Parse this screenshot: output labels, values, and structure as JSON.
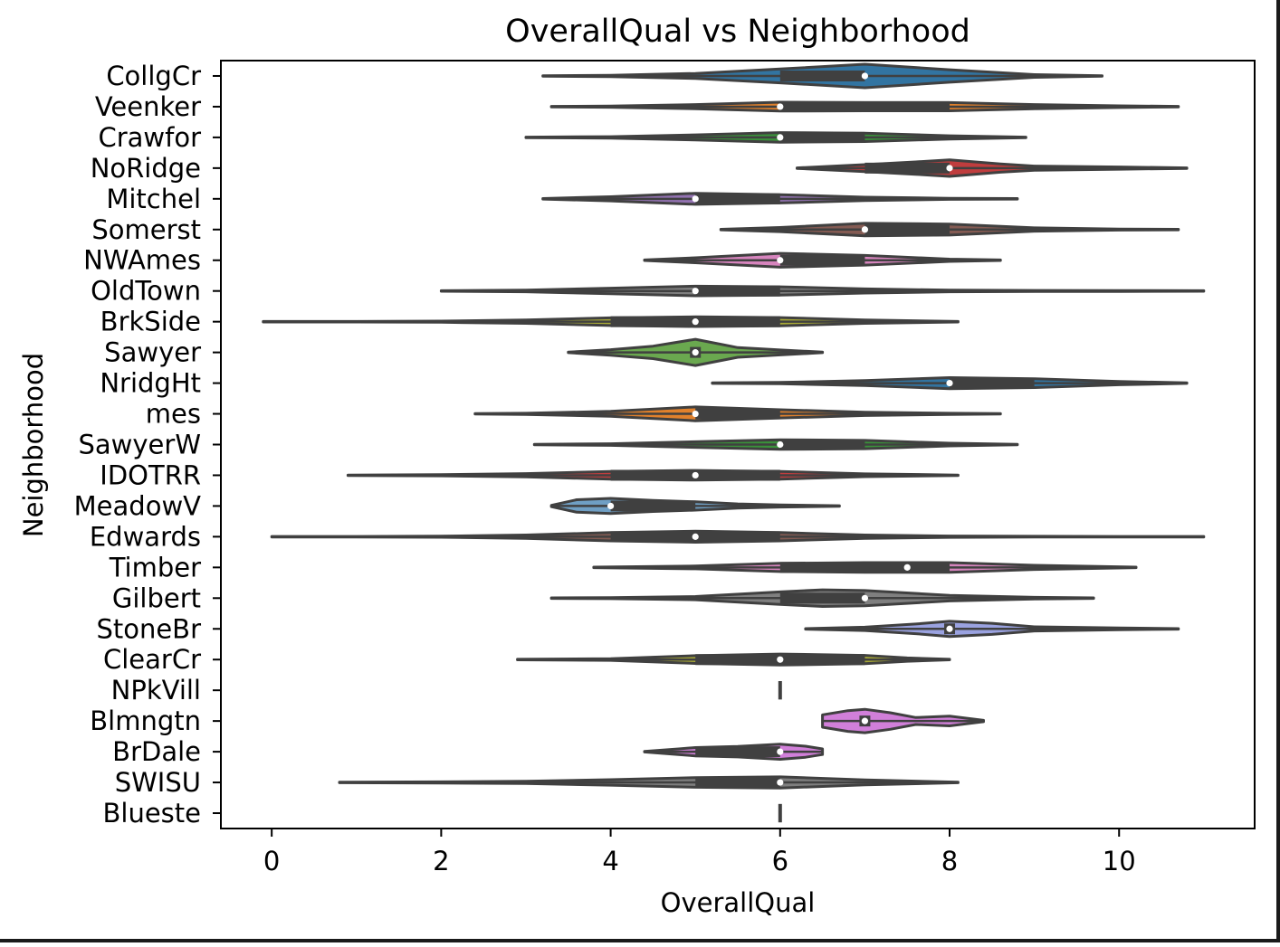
{
  "chart_data": {
    "type": "violin",
    "orientation": "horizontal",
    "title": "OverallQual vs Neighborhood",
    "xlabel": "OverallQual",
    "ylabel": "Neighborhood",
    "xlim": [
      -0.6,
      11.6
    ],
    "xticks": [
      "0",
      "2",
      "4",
      "6",
      "8",
      "10"
    ],
    "grid": false,
    "legend": "none",
    "categories": [
      {
        "name": "CollgCr",
        "min": 3.2,
        "max": 9.8,
        "q1": 6,
        "median": 7,
        "q3": 7,
        "color": "#3274a1",
        "shape": [
          [
            3.2,
            0.02
          ],
          [
            4,
            0.05
          ],
          [
            5,
            0.18
          ],
          [
            6,
            0.5
          ],
          [
            7,
            0.85
          ],
          [
            8,
            0.45
          ],
          [
            9,
            0.1
          ],
          [
            9.8,
            0.02
          ]
        ]
      },
      {
        "name": "Veenker",
        "min": 3.3,
        "max": 10.7,
        "q1": 6,
        "median": 6,
        "q3": 8,
        "color": "#e1812c",
        "shape": [
          [
            3.3,
            0.02
          ],
          [
            4,
            0.04
          ],
          [
            5,
            0.15
          ],
          [
            6,
            0.32
          ],
          [
            7,
            0.3
          ],
          [
            8,
            0.3
          ],
          [
            9,
            0.15
          ],
          [
            10,
            0.06
          ],
          [
            10.7,
            0.02
          ]
        ]
      },
      {
        "name": "Crawfor",
        "min": 3.0,
        "max": 8.9,
        "q1": 6,
        "median": 6,
        "q3": 7,
        "color": "#3a923a",
        "shape": [
          [
            3.0,
            0.02
          ],
          [
            4,
            0.05
          ],
          [
            5,
            0.18
          ],
          [
            6,
            0.35
          ],
          [
            7,
            0.3
          ],
          [
            8,
            0.12
          ],
          [
            8.9,
            0.02
          ]
        ]
      },
      {
        "name": "NoRidge",
        "min": 6.2,
        "max": 10.8,
        "q1": 7,
        "median": 8,
        "q3": 8,
        "color": "#c03d3e",
        "shape": [
          [
            6.2,
            0.02
          ],
          [
            7,
            0.25
          ],
          [
            7.6,
            0.45
          ],
          [
            8,
            0.6
          ],
          [
            8.6,
            0.3
          ],
          [
            9,
            0.15
          ],
          [
            10,
            0.08
          ],
          [
            10.8,
            0.02
          ]
        ]
      },
      {
        "name": "Mitchel",
        "min": 3.2,
        "max": 8.8,
        "q1": 5,
        "median": 5,
        "q3": 6,
        "color": "#9372b2",
        "shape": [
          [
            3.2,
            0.02
          ],
          [
            4,
            0.15
          ],
          [
            5,
            0.4
          ],
          [
            6,
            0.3
          ],
          [
            7,
            0.12
          ],
          [
            8,
            0.04
          ],
          [
            8.8,
            0.02
          ]
        ]
      },
      {
        "name": "Somerst",
        "min": 5.3,
        "max": 10.7,
        "q1": 7,
        "median": 7,
        "q3": 8,
        "color": "#845b53",
        "shape": [
          [
            5.3,
            0.02
          ],
          [
            6,
            0.15
          ],
          [
            7,
            0.45
          ],
          [
            8,
            0.4
          ],
          [
            9,
            0.12
          ],
          [
            10,
            0.04
          ],
          [
            10.7,
            0.02
          ]
        ]
      },
      {
        "name": "NWAmes",
        "min": 4.4,
        "max": 8.6,
        "q1": 6,
        "median": 6,
        "q3": 7,
        "color": "#d684bd",
        "shape": [
          [
            4.4,
            0.02
          ],
          [
            5,
            0.18
          ],
          [
            6,
            0.5
          ],
          [
            7,
            0.35
          ],
          [
            8,
            0.08
          ],
          [
            8.6,
            0.02
          ]
        ]
      },
      {
        "name": "OldTown",
        "min": 2.0,
        "max": 11.0,
        "q1": 5,
        "median": 5,
        "q3": 6,
        "color": "#7f7f7f",
        "shape": [
          [
            2.0,
            0.02
          ],
          [
            3,
            0.06
          ],
          [
            4,
            0.2
          ],
          [
            5,
            0.35
          ],
          [
            6,
            0.3
          ],
          [
            7,
            0.15
          ],
          [
            8,
            0.06
          ],
          [
            9,
            0.04
          ],
          [
            10,
            0.03
          ],
          [
            11,
            0.02
          ]
        ]
      },
      {
        "name": "BrkSide",
        "min": -0.1,
        "max": 8.1,
        "q1": 4,
        "median": 5,
        "q3": 6,
        "color": "#a9aa35",
        "shape": [
          [
            -0.1,
            0.02
          ],
          [
            1,
            0.02
          ],
          [
            2,
            0.04
          ],
          [
            3,
            0.12
          ],
          [
            4,
            0.28
          ],
          [
            5,
            0.35
          ],
          [
            6,
            0.3
          ],
          [
            7,
            0.12
          ],
          [
            8.1,
            0.02
          ]
        ]
      },
      {
        "name": "Sawyer",
        "min": 3.5,
        "max": 6.5,
        "q1": 5,
        "median": 5,
        "q3": 5,
        "color": "#6aa84f",
        "shape": [
          [
            3.5,
            0.02
          ],
          [
            4,
            0.2
          ],
          [
            4.5,
            0.45
          ],
          [
            5,
            0.95
          ],
          [
            5.5,
            0.35
          ],
          [
            6,
            0.18
          ],
          [
            6.5,
            0.02
          ]
        ]
      },
      {
        "name": "NridgHt",
        "min": 5.2,
        "max": 10.8,
        "q1": 8,
        "median": 8,
        "q3": 9,
        "color": "#3274a1",
        "shape": [
          [
            5.2,
            0.02
          ],
          [
            6,
            0.05
          ],
          [
            7,
            0.18
          ],
          [
            8,
            0.4
          ],
          [
            9,
            0.32
          ],
          [
            10,
            0.12
          ],
          [
            10.8,
            0.02
          ]
        ]
      },
      {
        "name": "mes",
        "min": 2.4,
        "max": 8.6,
        "q1": 5,
        "median": 5,
        "q3": 6,
        "color": "#e1812c",
        "shape": [
          [
            2.4,
            0.02
          ],
          [
            3,
            0.04
          ],
          [
            4,
            0.18
          ],
          [
            5,
            0.5
          ],
          [
            6,
            0.3
          ],
          [
            7,
            0.12
          ],
          [
            8,
            0.04
          ],
          [
            8.6,
            0.02
          ]
        ]
      },
      {
        "name": "SawyerW",
        "min": 3.1,
        "max": 8.8,
        "q1": 6,
        "median": 6,
        "q3": 7,
        "color": "#3a923a",
        "shape": [
          [
            3.1,
            0.02
          ],
          [
            4,
            0.06
          ],
          [
            5,
            0.2
          ],
          [
            6,
            0.35
          ],
          [
            7,
            0.3
          ],
          [
            8,
            0.1
          ],
          [
            8.8,
            0.02
          ]
        ]
      },
      {
        "name": "IDOTRR",
        "min": 0.9,
        "max": 8.1,
        "q1": 4,
        "median": 5,
        "q3": 6,
        "color": "#c03d3e",
        "shape": [
          [
            0.9,
            0.02
          ],
          [
            2,
            0.04
          ],
          [
            3,
            0.12
          ],
          [
            4,
            0.28
          ],
          [
            5,
            0.35
          ],
          [
            6,
            0.28
          ],
          [
            7,
            0.1
          ],
          [
            8.1,
            0.02
          ]
        ]
      },
      {
        "name": "MeadowV",
        "min": 3.3,
        "max": 6.7,
        "q1": 4,
        "median": 4,
        "q3": 5,
        "color": "#6f9fc4",
        "shape": [
          [
            3.3,
            0.05
          ],
          [
            3.6,
            0.45
          ],
          [
            4,
            0.55
          ],
          [
            4.5,
            0.4
          ],
          [
            5,
            0.3
          ],
          [
            5.5,
            0.15
          ],
          [
            6,
            0.08
          ],
          [
            6.7,
            0.02
          ]
        ]
      },
      {
        "name": "Edwards",
        "min": 0.0,
        "max": 11.0,
        "q1": 4,
        "median": 5,
        "q3": 6,
        "color": "#845b53",
        "shape": [
          [
            0,
            0.02
          ],
          [
            1,
            0.02
          ],
          [
            2,
            0.04
          ],
          [
            3,
            0.12
          ],
          [
            4,
            0.3
          ],
          [
            5,
            0.4
          ],
          [
            6,
            0.3
          ],
          [
            7,
            0.12
          ],
          [
            8,
            0.05
          ],
          [
            9,
            0.03
          ],
          [
            10,
            0.02
          ],
          [
            11,
            0.02
          ]
        ]
      },
      {
        "name": "Timber",
        "min": 3.8,
        "max": 10.2,
        "q1": 6,
        "median": 7.5,
        "q3": 8,
        "color": "#d684bd",
        "shape": [
          [
            3.8,
            0.02
          ],
          [
            5,
            0.1
          ],
          [
            6,
            0.3
          ],
          [
            7,
            0.35
          ],
          [
            8,
            0.35
          ],
          [
            9,
            0.15
          ],
          [
            10.2,
            0.02
          ]
        ]
      },
      {
        "name": "Gilbert",
        "min": 3.3,
        "max": 9.7,
        "q1": 6,
        "median": 7,
        "q3": 7,
        "color": "#7f7f7f",
        "shape": [
          [
            3.3,
            0.02
          ],
          [
            4,
            0.04
          ],
          [
            5,
            0.12
          ],
          [
            6,
            0.45
          ],
          [
            6.5,
            0.6
          ],
          [
            7,
            0.55
          ],
          [
            8,
            0.2
          ],
          [
            9,
            0.06
          ],
          [
            9.7,
            0.02
          ]
        ]
      },
      {
        "name": "StoneBr",
        "min": 6.3,
        "max": 10.7,
        "q1": 8,
        "median": 8,
        "q3": 8,
        "color": "#9aa2e0",
        "shape": [
          [
            6.3,
            0.02
          ],
          [
            7,
            0.12
          ],
          [
            7.6,
            0.35
          ],
          [
            8,
            0.55
          ],
          [
            8.5,
            0.4
          ],
          [
            9,
            0.15
          ],
          [
            10,
            0.06
          ],
          [
            10.7,
            0.02
          ]
        ]
      },
      {
        "name": "ClearCr",
        "min": 2.9,
        "max": 8.0,
        "q1": 5,
        "median": 6,
        "q3": 7,
        "color": "#a9aa35",
        "shape": [
          [
            2.9,
            0.02
          ],
          [
            4,
            0.06
          ],
          [
            5,
            0.28
          ],
          [
            6,
            0.4
          ],
          [
            7,
            0.3
          ],
          [
            7.5,
            0.12
          ],
          [
            8.0,
            0.02
          ]
        ]
      },
      {
        "name": "NPkVill",
        "min": 6,
        "max": 6,
        "q1": 6,
        "median": 6,
        "q3": 6,
        "color": "#17becf",
        "shape": []
      },
      {
        "name": "Blmngtn",
        "min": 6.5,
        "max": 8.4,
        "q1": 7,
        "median": 7,
        "q3": 7,
        "color": "#d17fd9",
        "shape": [
          [
            6.5,
            0.45
          ],
          [
            6.8,
            0.75
          ],
          [
            7,
            0.85
          ],
          [
            7.3,
            0.6
          ],
          [
            7.6,
            0.25
          ],
          [
            8,
            0.35
          ],
          [
            8.4,
            0.05
          ]
        ]
      },
      {
        "name": "BrDale",
        "min": 4.4,
        "max": 6.5,
        "q1": 5,
        "median": 6,
        "q3": 6,
        "color": "#d17fd9",
        "shape": [
          [
            4.4,
            0.02
          ],
          [
            4.8,
            0.2
          ],
          [
            5,
            0.3
          ],
          [
            5.5,
            0.38
          ],
          [
            6,
            0.55
          ],
          [
            6.3,
            0.4
          ],
          [
            6.5,
            0.2
          ]
        ]
      },
      {
        "name": "SWISU",
        "min": 0.8,
        "max": 8.1,
        "q1": 5,
        "median": 6,
        "q3": 6,
        "color": "#7f7f7f",
        "shape": [
          [
            0.8,
            0.02
          ],
          [
            2,
            0.04
          ],
          [
            3,
            0.08
          ],
          [
            4,
            0.2
          ],
          [
            5,
            0.35
          ],
          [
            6,
            0.4
          ],
          [
            7,
            0.18
          ],
          [
            8.1,
            0.02
          ]
        ]
      },
      {
        "name": "Blueste",
        "min": 6,
        "max": 6,
        "q1": 6,
        "median": 6,
        "q3": 6,
        "color": "#17becf",
        "shape": []
      }
    ]
  }
}
